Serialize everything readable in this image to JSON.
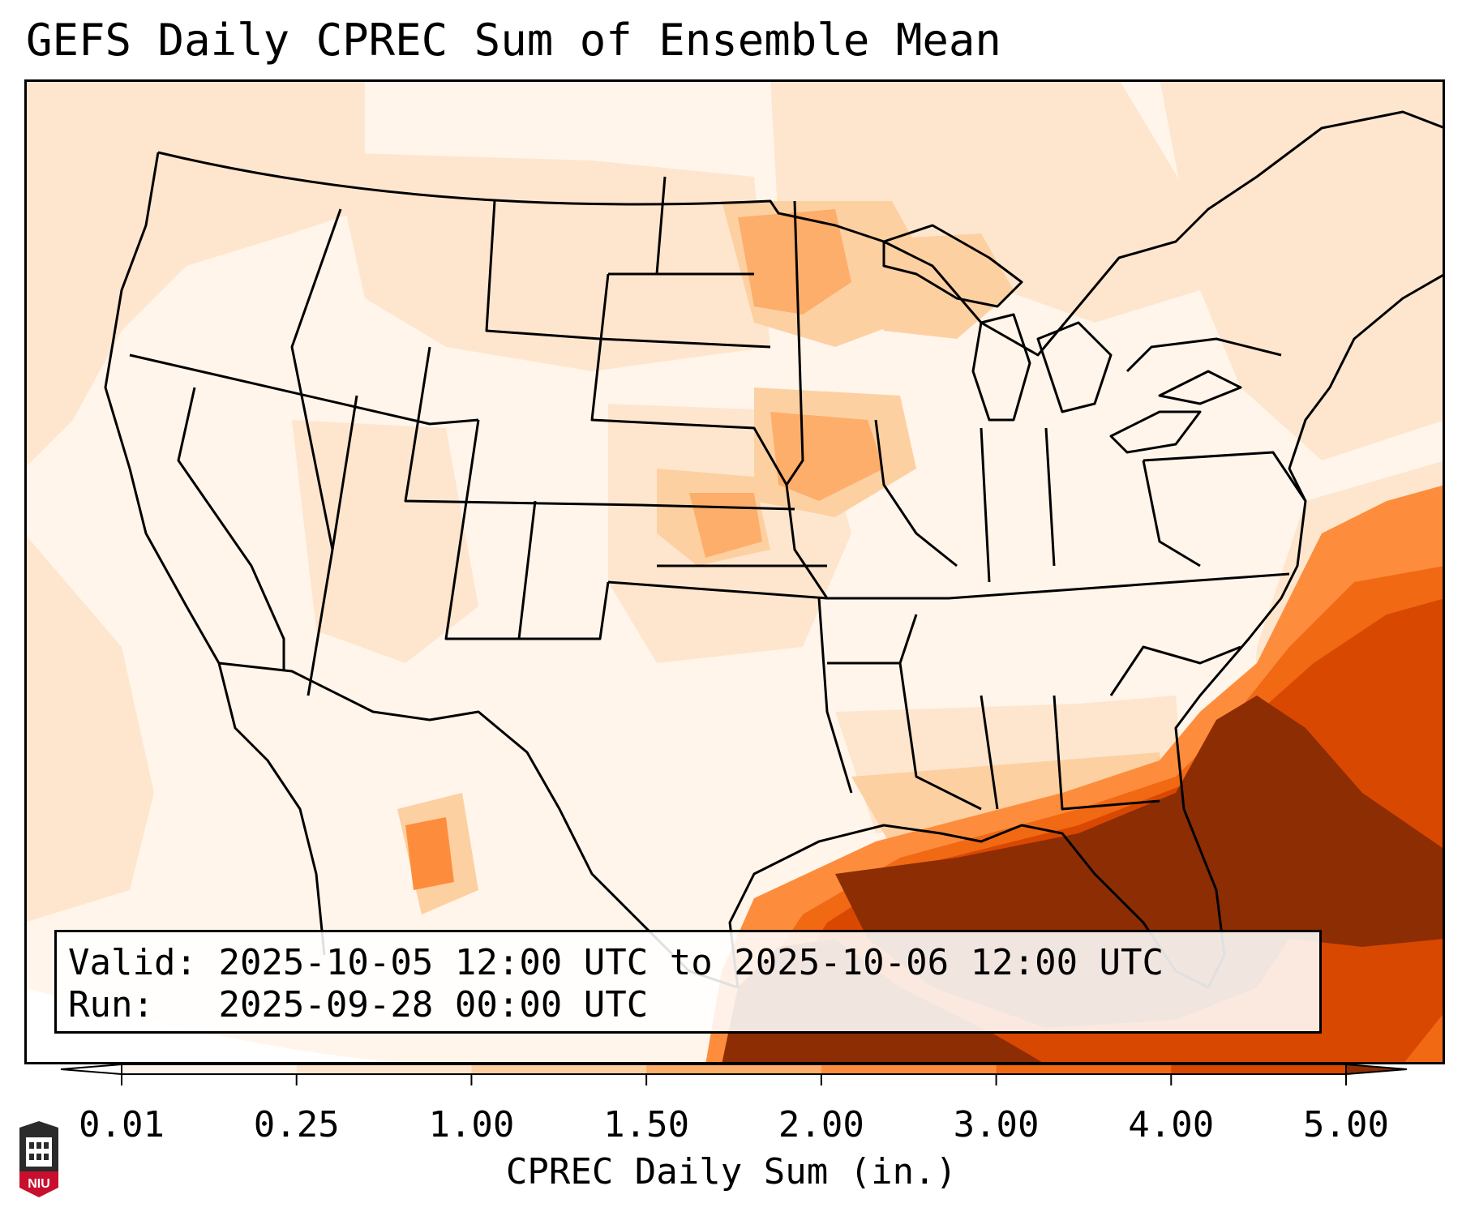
{
  "title": "GEFS Daily CPREC Sum of Ensemble Mean",
  "valid_label": "Valid:",
  "valid_value": "2025-10-05 12:00 UTC to 2025-10-06 12:00 UTC",
  "run_label": "Run:",
  "run_value": "2025-09-28 00:00 UTC",
  "colorbar": {
    "title": "CPREC Daily Sum (in.)",
    "ticks": [
      "0.01",
      "0.25",
      "1.00",
      "1.50",
      "2.00",
      "3.00",
      "4.00",
      "5.00"
    ],
    "colors": [
      "#fff5eb",
      "#fee6ce",
      "#fdd0a2",
      "#fdae6b",
      "#fd8d3c",
      "#f16913",
      "#d94801",
      "#8c2d04"
    ],
    "under_color": "#ffffff",
    "over_color": "#7f2704"
  },
  "logo_text": "NIU",
  "map": {
    "region": "Continental United States",
    "variable": "CPREC daily sum",
    "units": "in.",
    "heavy_areas": [
      "Gulf of Mexico",
      "Florida",
      "Southeast Atlantic coast"
    ],
    "moderate_areas": [
      "Upper Midwest",
      "Great Lakes",
      "Kansas",
      "Iowa"
    ]
  }
}
